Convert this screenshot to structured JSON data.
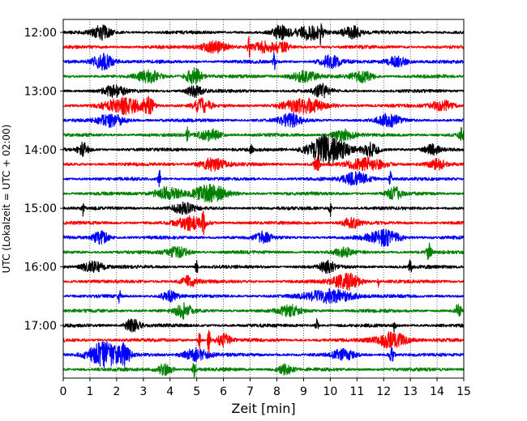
{
  "chart_data": {
    "type": "line",
    "xlabel": "Zeit  [min]",
    "ylabel": "UTC (Lokalzeit = UTC + 02:00)",
    "xlim": [
      0,
      15
    ],
    "x_ticks": [
      "0",
      "1",
      "2",
      "3",
      "4",
      "5",
      "6",
      "7",
      "8",
      "9",
      "10",
      "11",
      "12",
      "13",
      "14",
      "15"
    ],
    "y_tick_labels": [
      "12:00",
      "13:00",
      "14:00",
      "15:00",
      "16:00",
      "17:00"
    ],
    "grid": {
      "x": true,
      "y": false,
      "style": "dotted"
    },
    "trace_colors": [
      "#000000",
      "#ff0000",
      "#0000ff",
      "#008000"
    ],
    "traces": [
      {
        "start": "12:00",
        "color": "#000000",
        "bursts": [
          [
            1.45,
            0.35,
            1.0
          ],
          [
            8.15,
            0.3,
            1.0
          ],
          [
            9.25,
            0.5,
            1.1
          ],
          [
            9.65,
            0.05,
            1.8
          ],
          [
            10.8,
            0.4,
            0.9
          ]
        ]
      },
      {
        "start": "12:15",
        "color": "#ff0000",
        "bursts": [
          [
            5.7,
            0.5,
            0.9
          ],
          [
            6.95,
            0.05,
            1.6
          ],
          [
            7.5,
            0.4,
            0.7
          ],
          [
            8.2,
            0.3,
            0.7
          ]
        ]
      },
      {
        "start": "12:30",
        "color": "#0000ff",
        "bursts": [
          [
            1.5,
            0.4,
            1.2
          ],
          [
            7.9,
            0.05,
            1.5
          ],
          [
            10.0,
            0.4,
            0.9
          ],
          [
            12.5,
            0.4,
            0.8
          ]
        ]
      },
      {
        "start": "12:45",
        "color": "#008000",
        "bursts": [
          [
            3.2,
            0.4,
            0.9
          ],
          [
            4.9,
            0.3,
            1.3
          ],
          [
            9.0,
            0.5,
            0.8
          ],
          [
            11.2,
            0.4,
            0.8
          ]
        ]
      },
      {
        "start": "13:00",
        "color": "#000000",
        "bursts": [
          [
            1.9,
            0.4,
            0.8
          ],
          [
            4.9,
            0.3,
            0.8
          ],
          [
            9.7,
            0.3,
            1.0
          ]
        ]
      },
      {
        "start": "13:15",
        "color": "#ff0000",
        "bursts": [
          [
            2.3,
            0.7,
            1.2
          ],
          [
            3.2,
            0.2,
            1.1
          ],
          [
            5.2,
            0.3,
            1.1
          ],
          [
            9.0,
            0.8,
            1.0
          ],
          [
            14.2,
            0.4,
            0.8
          ]
        ]
      },
      {
        "start": "13:30",
        "color": "#0000ff",
        "bursts": [
          [
            1.8,
            0.5,
            0.9
          ],
          [
            8.5,
            0.4,
            1.0
          ],
          [
            12.2,
            0.4,
            0.9
          ]
        ]
      },
      {
        "start": "13:45",
        "color": "#008000",
        "bursts": [
          [
            4.65,
            0.05,
            1.4
          ],
          [
            5.5,
            0.4,
            0.9
          ],
          [
            10.5,
            0.4,
            0.8
          ],
          [
            14.9,
            0.1,
            1.1
          ]
        ]
      },
      {
        "start": "14:00",
        "color": "#000000",
        "bursts": [
          [
            0.75,
            0.2,
            1.0
          ],
          [
            7.05,
            0.05,
            1.3
          ],
          [
            9.9,
            0.7,
            2.2
          ],
          [
            11.5,
            0.3,
            0.9
          ],
          [
            13.8,
            0.3,
            0.8
          ]
        ]
      },
      {
        "start": "14:15",
        "color": "#ff0000",
        "bursts": [
          [
            5.6,
            0.5,
            0.9
          ],
          [
            9.5,
            0.1,
            1.2
          ],
          [
            11.4,
            0.7,
            0.9
          ],
          [
            14.0,
            0.3,
            0.7
          ]
        ]
      },
      {
        "start": "14:30",
        "color": "#0000ff",
        "bursts": [
          [
            3.6,
            0.05,
            1.3
          ],
          [
            11.0,
            0.5,
            1.0
          ],
          [
            12.25,
            0.05,
            1.2
          ]
        ]
      },
      {
        "start": "14:45",
        "color": "#008000",
        "bursts": [
          [
            3.9,
            0.5,
            1.0
          ],
          [
            5.5,
            0.6,
            1.3
          ],
          [
            12.4,
            0.3,
            0.9
          ]
        ]
      },
      {
        "start": "15:00",
        "color": "#000000",
        "bursts": [
          [
            0.75,
            0.05,
            1.1
          ],
          [
            4.5,
            0.4,
            0.8
          ],
          [
            10.0,
            0.05,
            1.2
          ]
        ]
      },
      {
        "start": "15:15",
        "color": "#ff0000",
        "bursts": [
          [
            4.8,
            0.5,
            1.0
          ],
          [
            5.25,
            0.05,
            2.0
          ],
          [
            10.8,
            0.3,
            0.8
          ]
        ]
      },
      {
        "start": "15:30",
        "color": "#0000ff",
        "bursts": [
          [
            1.4,
            0.3,
            1.0
          ],
          [
            7.5,
            0.3,
            0.8
          ],
          [
            12.0,
            0.6,
            1.2
          ]
        ]
      },
      {
        "start": "15:45",
        "color": "#008000",
        "bursts": [
          [
            4.3,
            0.4,
            0.8
          ],
          [
            10.5,
            0.3,
            0.7
          ],
          [
            13.7,
            0.1,
            1.2
          ]
        ]
      },
      {
        "start": "16:00",
        "color": "#000000",
        "bursts": [
          [
            1.1,
            0.4,
            0.9
          ],
          [
            5.0,
            0.05,
            1.1
          ],
          [
            9.9,
            0.3,
            0.8
          ],
          [
            13.0,
            0.05,
            1.1
          ]
        ]
      },
      {
        "start": "16:15",
        "color": "#ff0000",
        "bursts": [
          [
            4.7,
            0.3,
            0.8
          ],
          [
            10.6,
            0.5,
            1.3
          ],
          [
            11.8,
            0.05,
            1.1
          ]
        ]
      },
      {
        "start": "16:30",
        "color": "#0000ff",
        "bursts": [
          [
            2.1,
            0.05,
            1.3
          ],
          [
            4.0,
            0.3,
            0.8
          ],
          [
            10.0,
            0.9,
            1.0
          ]
        ]
      },
      {
        "start": "16:45",
        "color": "#008000",
        "bursts": [
          [
            4.5,
            0.3,
            1.1
          ],
          [
            8.5,
            0.4,
            0.8
          ],
          [
            14.8,
            0.1,
            1.1
          ]
        ]
      },
      {
        "start": "17:00",
        "color": "#000000",
        "bursts": [
          [
            2.6,
            0.3,
            1.0
          ],
          [
            9.5,
            0.05,
            1.0
          ],
          [
            12.4,
            0.05,
            1.0
          ]
        ]
      },
      {
        "start": "17:15",
        "color": "#ff0000",
        "bursts": [
          [
            5.1,
            0.05,
            1.3
          ],
          [
            5.45,
            0.05,
            2.4
          ],
          [
            6.0,
            0.3,
            0.9
          ],
          [
            12.3,
            0.6,
            1.2
          ]
        ]
      },
      {
        "start": "17:30",
        "color": "#0000ff",
        "bursts": [
          [
            1.5,
            0.6,
            2.0
          ],
          [
            2.3,
            0.2,
            1.3
          ],
          [
            5.0,
            0.5,
            1.0
          ],
          [
            10.5,
            0.4,
            0.9
          ],
          [
            12.3,
            0.1,
            1.0
          ]
        ]
      },
      {
        "start": "17:45",
        "color": "#008000",
        "bursts": [
          [
            3.8,
            0.3,
            0.8
          ],
          [
            4.9,
            0.05,
            1.2
          ],
          [
            8.3,
            0.3,
            0.8
          ]
        ]
      }
    ]
  }
}
